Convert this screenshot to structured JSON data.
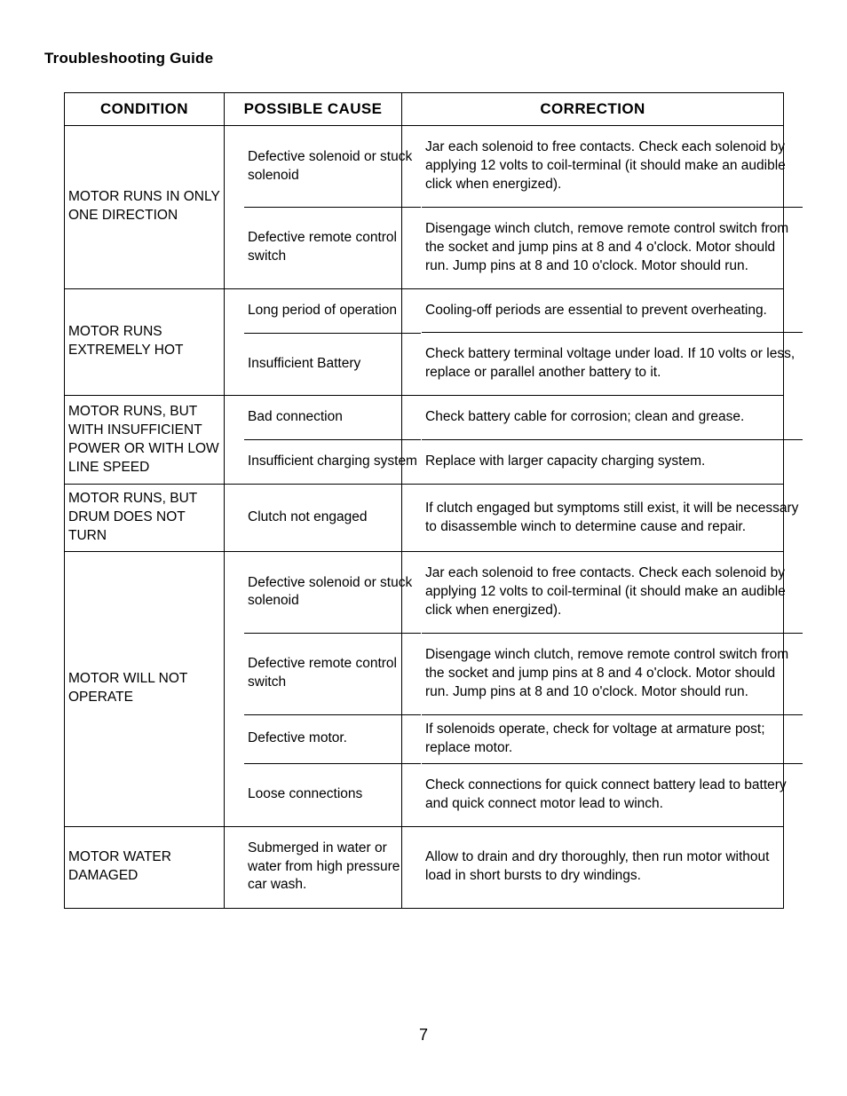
{
  "title": "Troubleshooting Guide",
  "page_number": "7",
  "headers": [
    "CONDITION",
    "POSSIBLE CAUSE",
    "CORRECTION"
  ],
  "rows": [
    {
      "condition": "MOTOR RUNS IN ONLY ONE DIRECTION",
      "items": [
        {
          "cause": "Defective solenoid or stuck solenoid",
          "correction": "Jar each solenoid to free contacts. Check each solenoid by applying 12 volts to coil-terminal (it should make an audible click when energized)."
        },
        {
          "cause": "Defective remote control switch",
          "correction": "Disengage winch clutch, remove remote control switch from the socket and jump pins at 8 and 4 o'clock. Motor should run. Jump pins at 8 and 10 o'clock. Motor should run."
        }
      ]
    },
    {
      "condition": "MOTOR RUNS EXTREMELY HOT",
      "items": [
        {
          "cause": "Long period of operation",
          "correction": "Cooling-off periods are essential to prevent overheating."
        },
        {
          "cause": "Insufficient Battery",
          "correction": "Check battery terminal voltage under load. If 10 volts or less, replace or parallel another battery to it."
        }
      ]
    },
    {
      "condition": "MOTOR RUNS, BUT WITH INSUFFICIENT POWER OR WITH LOW LINE SPEED",
      "items": [
        {
          "cause": "Bad connection",
          "correction": "Check battery cable for corrosion; clean and grease."
        },
        {
          "cause": "Insufficient charging system",
          "correction": "Replace with larger capacity charging system."
        }
      ]
    },
    {
      "condition": "MOTOR RUNS, BUT DRUM DOES NOT TURN",
      "items": [
        {
          "cause": "Clutch not engaged",
          "correction": "If clutch engaged but symptoms still exist, it will be necessary to disassemble winch to determine cause and repair."
        }
      ]
    },
    {
      "condition": "MOTOR WILL NOT OPERATE",
      "items": [
        {
          "cause": "Defective solenoid or stuck solenoid",
          "correction": "Jar each solenoid to free contacts. Check each solenoid by applying 12 volts to coil-terminal (it should make an audible click when energized)."
        },
        {
          "cause": "Defective remote control switch",
          "correction": "Disengage winch clutch, remove remote control switch from the socket and jump pins at 8 and 4 o'clock. Motor should run. Jump pins at 8 and 10 o'clock. Motor should run."
        },
        {
          "cause": "Defective motor.",
          "correction": "If solenoids operate, check for voltage at armature post; replace motor.",
          "tight": true
        },
        {
          "cause": "Loose connections",
          "correction": "Check connections for quick connect battery lead to battery and quick connect motor lead to winch."
        }
      ]
    },
    {
      "condition": "MOTOR WATER DAMAGED",
      "items": [
        {
          "cause": "Submerged in water or water from high pressure car wash.",
          "correction": "Allow to drain and dry thoroughly, then run motor without load in short bursts to dry windings."
        }
      ]
    }
  ]
}
